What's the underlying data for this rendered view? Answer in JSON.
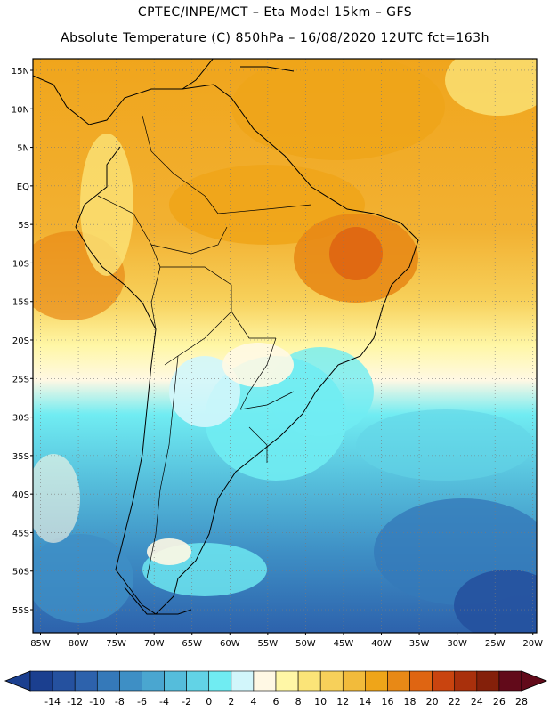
{
  "header": {
    "line1": "CPTEC/INPE/MCT –  Eta Model 15km – GFS",
    "line2": "Absolute Temperature (C) 850hPa – 16/08/2020 12UTC fct=163h"
  },
  "lat_labels": [
    "15N",
    "10N",
    "5N",
    "EQ",
    "5S",
    "10S",
    "15S",
    "20S",
    "25S",
    "30S",
    "35S",
    "40S",
    "45S",
    "50S",
    "55S"
  ],
  "lon_labels": [
    "85W",
    "80W",
    "75W",
    "70W",
    "65W",
    "60W",
    "55W",
    "50W",
    "45W",
    "40W",
    "35W",
    "30W",
    "25W",
    "20W"
  ],
  "colorbar": {
    "ticks": [
      "-14",
      "-12",
      "-10",
      "-8",
      "-6",
      "-4",
      "-2",
      "0",
      "2",
      "4",
      "6",
      "8",
      "10",
      "12",
      "14",
      "16",
      "18",
      "20",
      "22",
      "24",
      "26",
      "28"
    ],
    "colors": [
      "#1b3f8f",
      "#25519f",
      "#2d62ac",
      "#3579b9",
      "#3e8fc5",
      "#4aa6d0",
      "#55bddb",
      "#62d3e6",
      "#70ecf2",
      "#d2f6fb",
      "#fff8e4",
      "#fff7a6",
      "#fbe478",
      "#f7d05a",
      "#f2bb3b",
      "#efa519",
      "#e88916",
      "#df6512",
      "#c9440f",
      "#a9300c",
      "#84200a",
      "#620a1a"
    ]
  }
}
